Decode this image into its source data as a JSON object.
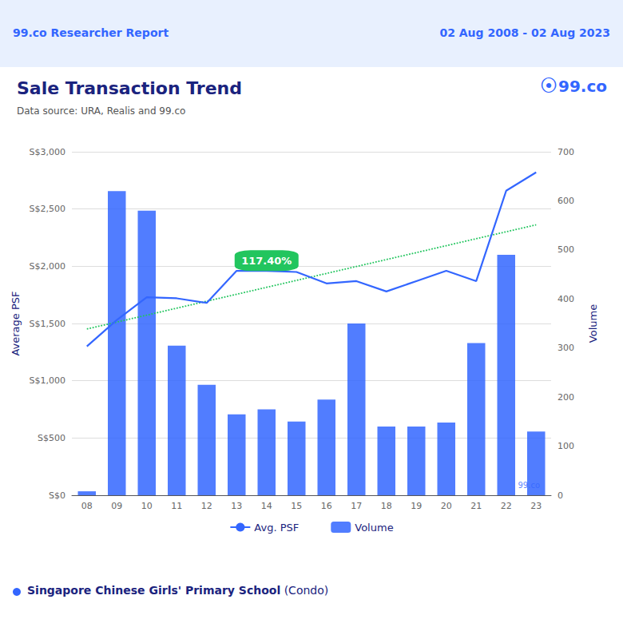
{
  "chart_data": {
    "type": "bar",
    "title": "Sale Transaction Trend",
    "subtitle": "Data source: URA, Realis and 99.co",
    "categories": [
      "08",
      "09",
      "10",
      "11",
      "12",
      "13",
      "14",
      "15",
      "16",
      "17",
      "18",
      "19",
      "20",
      "21",
      "22",
      "23"
    ],
    "series": [
      {
        "name": "Avg. PSF",
        "type": "line",
        "color": "#3366ff",
        "values": [
          1300,
          1530,
          1730,
          1720,
          1680,
          1960,
          1960,
          1950,
          1850,
          1870,
          1780,
          1870,
          1960,
          1870,
          2660,
          2820
        ]
      },
      {
        "name": "Volume",
        "type": "bar",
        "axis": "y2",
        "color": "#3366ff",
        "values": [
          8,
          620,
          580,
          305,
          225,
          165,
          175,
          150,
          195,
          350,
          140,
          140,
          148,
          310,
          490,
          130
        ]
      },
      {
        "type": "line",
        "line_style": "dotted",
        "color": "#22c55e",
        "values": [
          1451.91,
          1512.57,
          1573.24,
          1633.9,
          1694.56,
          1755.22,
          1815.88,
          1876.54,
          1937.21,
          1997.87,
          2058.53,
          2119.19,
          2179.85,
          2240.51,
          2301.18,
          2361.84
        ]
      }
    ],
    "ylabel": "Average PSF",
    "y2label": "Volume",
    "ylim": [
      0,
      3000
    ],
    "yticks": [
      {
        "value": 0,
        "label": "S$0"
      },
      {
        "value": 500,
        "label": "S$500"
      },
      {
        "value": 1000,
        "label": "S$1,000"
      },
      {
        "value": 1500,
        "label": "S$1,500"
      },
      {
        "value": 2000,
        "label": "S$2,000"
      },
      {
        "value": 2500,
        "label": "S$2,500"
      },
      {
        "value": 3000,
        "label": "S$3,000"
      }
    ],
    "y2lim": [
      0,
      700
    ],
    "y2ticks": [
      0,
      100,
      200,
      300,
      400,
      500,
      600,
      700
    ],
    "grid": true,
    "legend": "bottom",
    "annotations": [
      {
        "text": "117.40%",
        "x": "14",
        "y": 2050,
        "color": "#22c55e"
      },
      {
        "text": "99.co Researcher Report"
      },
      {
        "text": "02 Aug 2008 - 02 Aug 2023"
      },
      {
        "text": "⦿"
      },
      {
        "text": "99.co"
      },
      {
        "text": "99.co"
      },
      {
        "text": "Singapore Chinese Girls' Primary School",
        "color": "#3366ff"
      },
      {
        "text": " (Condo)"
      }
    ]
  }
}
